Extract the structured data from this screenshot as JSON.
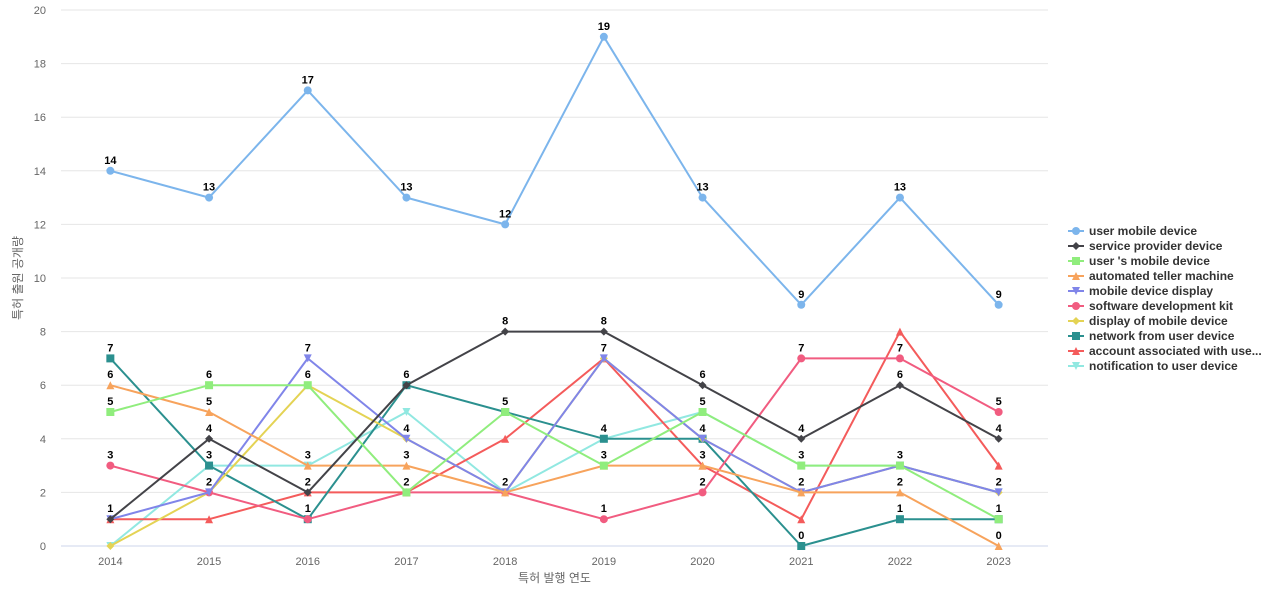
{
  "chart_data": {
    "type": "line",
    "xlabel": "특허 발행 연도",
    "ylabel": "특허 출원 공개량",
    "x": [
      "2014",
      "2015",
      "2016",
      "2017",
      "2018",
      "2019",
      "2020",
      "2021",
      "2022",
      "2023"
    ],
    "ylim": [
      0,
      20
    ],
    "yticks": [
      0,
      2,
      4,
      6,
      8,
      10,
      12,
      14,
      16,
      18,
      20
    ],
    "grid": true,
    "legend": "right",
    "series": [
      {
        "name": "user mobile device",
        "color": "#7cb5ec",
        "marker": "circle",
        "values": [
          14,
          13,
          17,
          13,
          12,
          19,
          13,
          9,
          13,
          9
        ],
        "labels": true
      },
      {
        "name": "service provider device",
        "color": "#434348",
        "marker": "diamond",
        "values": [
          1,
          4,
          2,
          6,
          8,
          8,
          6,
          4,
          6,
          4
        ],
        "labels": true
      },
      {
        "name": "user 's mobile device",
        "color": "#90ed7d",
        "marker": "square",
        "values": [
          5,
          6,
          6,
          2,
          5,
          3,
          5,
          3,
          3,
          1
        ],
        "labels": true
      },
      {
        "name": "automated teller machine",
        "color": "#f7a35c",
        "marker": "triangle",
        "values": [
          6,
          5,
          3,
          3,
          2,
          3,
          3,
          2,
          2,
          0
        ],
        "labels": true
      },
      {
        "name": "mobile device display",
        "color": "#8085e9",
        "marker": "triangle-down",
        "values": [
          1,
          2,
          7,
          4,
          2,
          7,
          4,
          2,
          3,
          2
        ],
        "labels": true
      },
      {
        "name": "software development kit",
        "color": "#f15c80",
        "marker": "circle",
        "values": [
          3,
          2,
          1,
          2,
          2,
          1,
          2,
          7,
          7,
          5
        ],
        "labels": true
      },
      {
        "name": "display of mobile device",
        "color": "#e4d354",
        "marker": "diamond",
        "values": [
          0,
          2,
          6,
          4,
          2,
          7,
          4,
          2,
          3,
          2
        ],
        "labels": false
      },
      {
        "name": "network from user device",
        "color": "#2b908f",
        "marker": "square",
        "values": [
          7,
          3,
          1,
          6,
          5,
          4,
          4,
          0,
          1,
          1
        ],
        "labels": true
      },
      {
        "name": "account associated with use...",
        "color": "#f45b5b",
        "marker": "triangle",
        "values": [
          1,
          1,
          2,
          2,
          4,
          7,
          3,
          1,
          8,
          3
        ],
        "labels": false
      },
      {
        "name": "notification to user device",
        "color": "#91e8e1",
        "marker": "triangle-down",
        "values": [
          0,
          3,
          3,
          5,
          2,
          4,
          5,
          3,
          3,
          2
        ],
        "labels": false
      }
    ]
  }
}
